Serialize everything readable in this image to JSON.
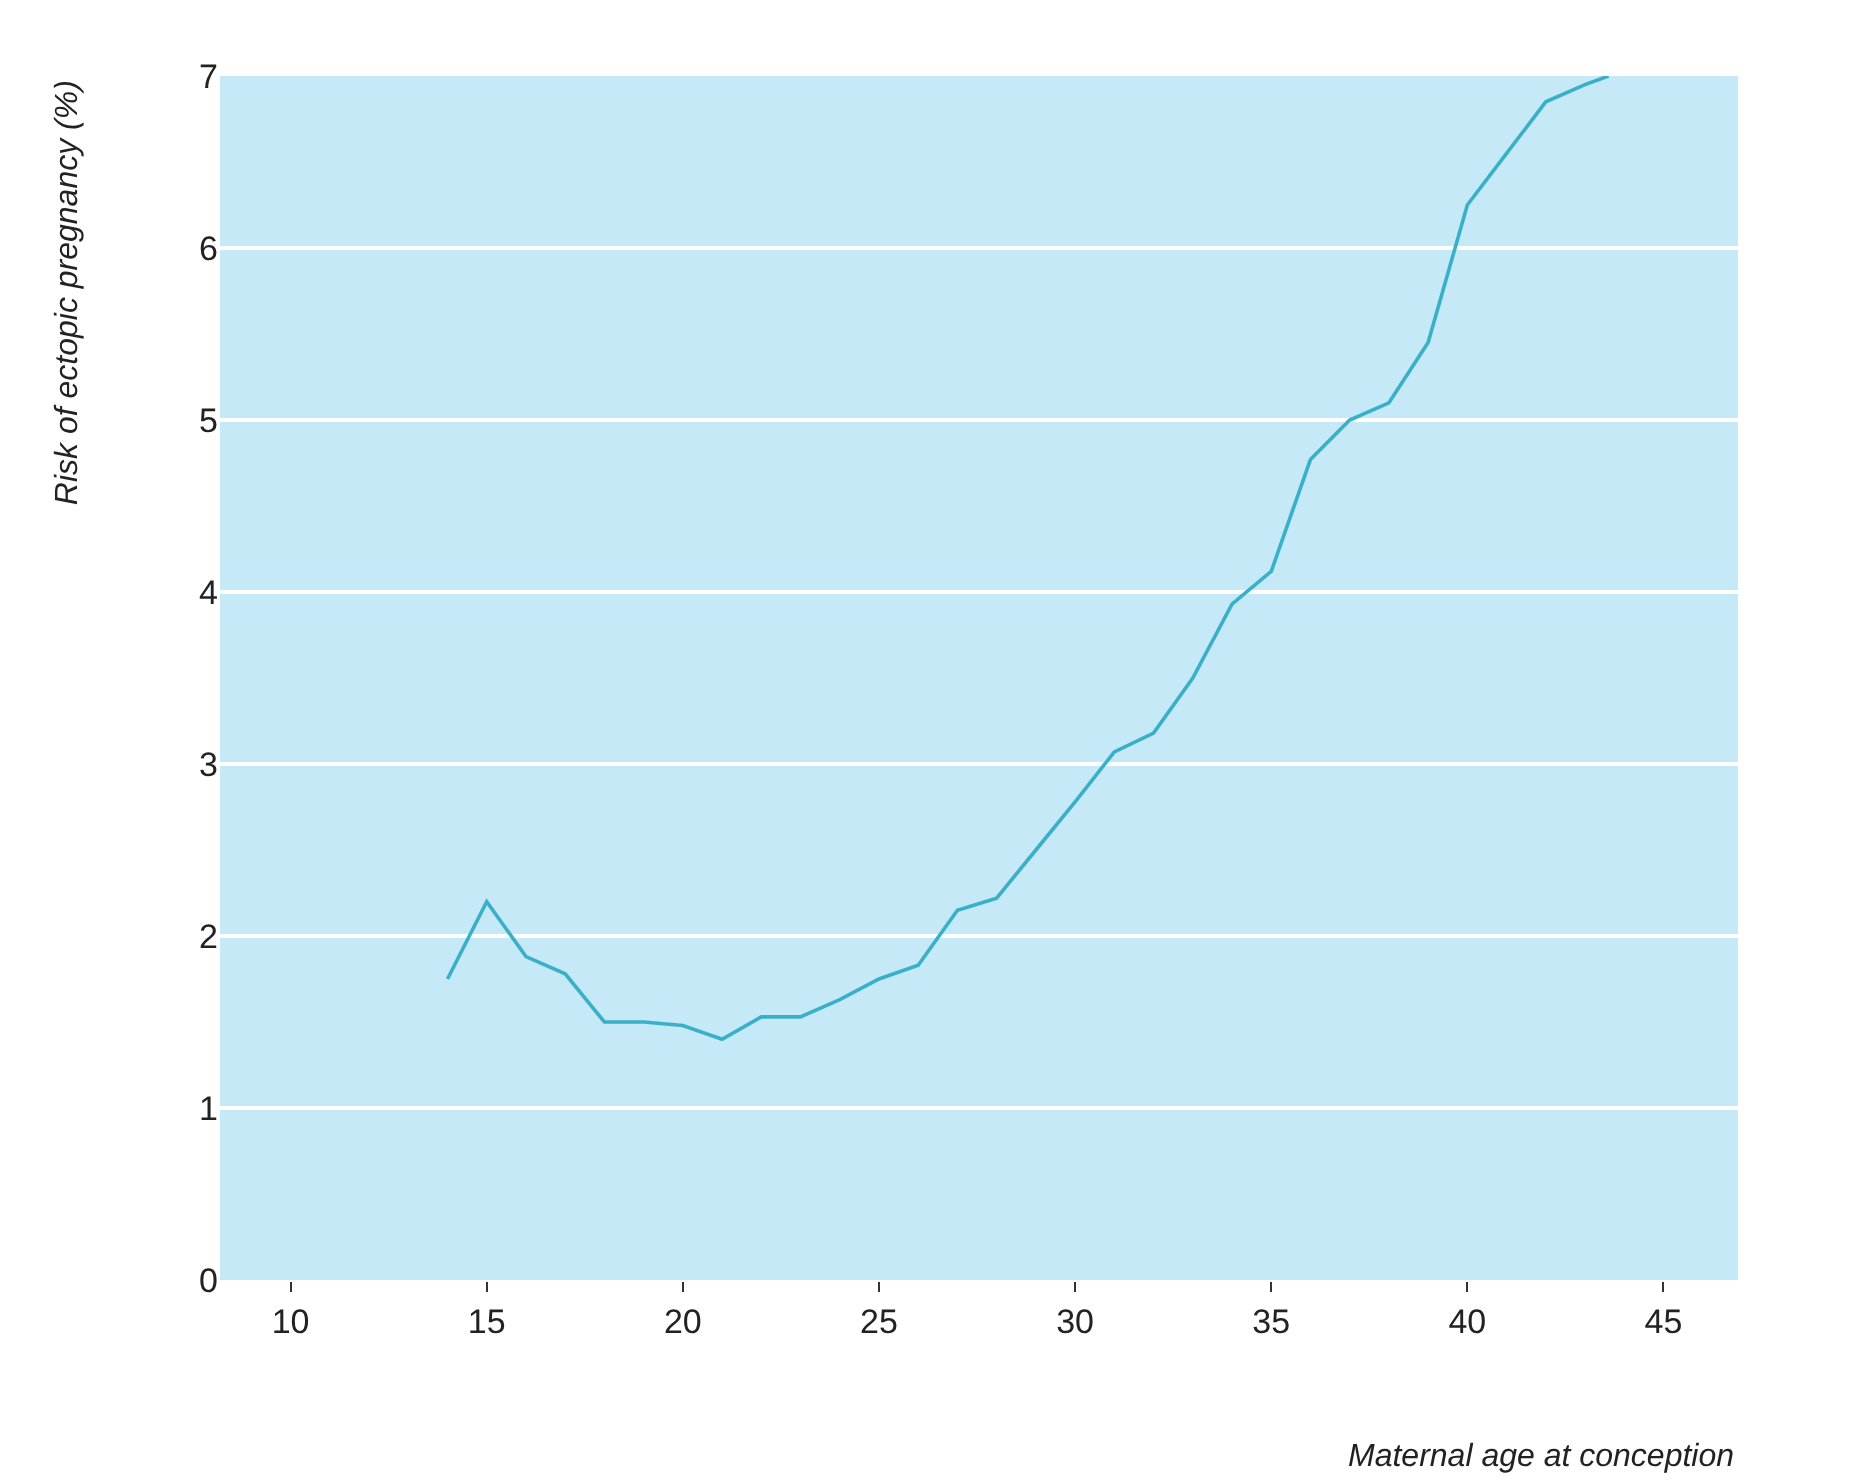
{
  "chart_data": {
    "type": "line",
    "xlabel": "Maternal age at conception",
    "ylabel": "Risk of ectopic pregnancy (%)",
    "x": [
      14,
      15,
      16,
      17,
      18,
      19,
      20,
      21,
      22,
      23,
      24,
      25,
      26,
      27,
      28,
      29,
      30,
      31,
      32,
      33,
      34,
      35,
      36,
      37,
      38,
      39,
      40,
      41,
      42,
      43,
      43.6
    ],
    "series": [
      {
        "color": "#3ab0c8",
        "values": [
          1.75,
          2.2,
          1.88,
          1.78,
          1.5,
          1.5,
          1.48,
          1.4,
          1.53,
          1.53,
          1.63,
          1.75,
          1.83,
          2.15,
          2.22,
          2.5,
          2.78,
          3.07,
          3.18,
          3.5,
          3.93,
          4.12,
          4.77,
          5.0,
          5.1,
          5.45,
          6.25,
          6.55,
          6.85,
          6.95,
          7.0
        ]
      }
    ],
    "xlim": [
      8.2,
      46.9
    ],
    "xticks": [
      10,
      15,
      20,
      25,
      30,
      35,
      40,
      45
    ],
    "ylim": [
      0,
      7
    ],
    "yticks": [
      0,
      1,
      2,
      3,
      4,
      5,
      6,
      7
    ],
    "grid": "y",
    "marker": "none",
    "line_style": "solid"
  }
}
